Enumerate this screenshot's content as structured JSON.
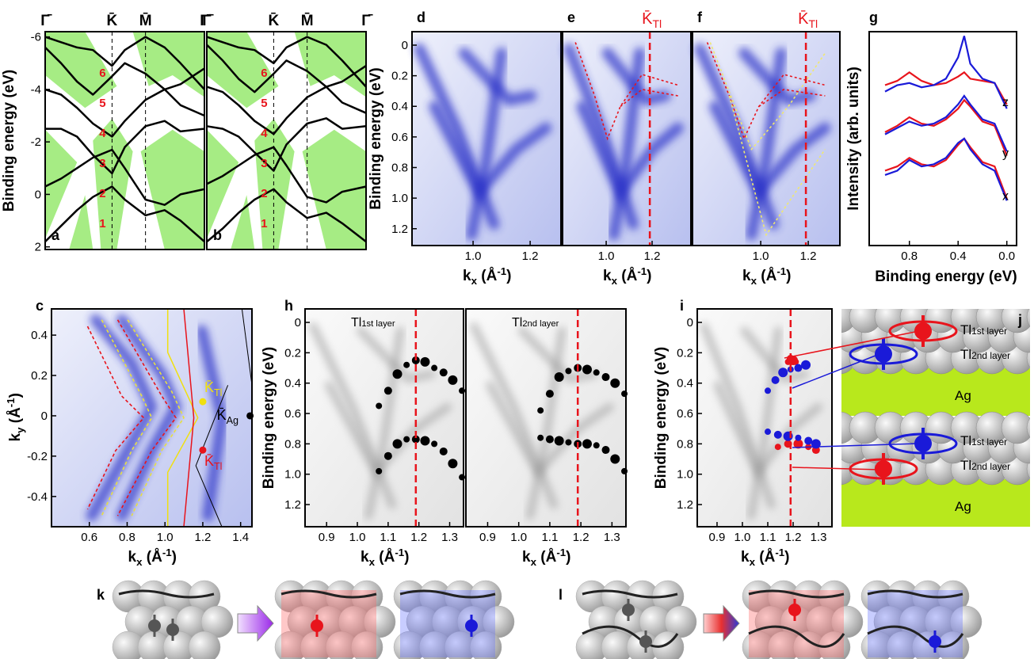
{
  "chart_data": [
    {
      "type": "band",
      "panel": "a",
      "ylabel": "Binding energy (eV)",
      "ylim": [
        -6.2,
        2.1
      ],
      "yticks": [
        -6,
        -4,
        -2,
        0,
        2
      ],
      "xlim": [
        0,
        1
      ],
      "kpoints": [
        "Γ̄",
        "K̄",
        "M̄",
        "Γ̄"
      ],
      "kpos": [
        0,
        0.42,
        0.63,
        1
      ],
      "band_labels": [
        "1",
        "2",
        "3",
        "4",
        "5",
        "6"
      ],
      "k": [
        0,
        0.1,
        0.2,
        0.3,
        0.42,
        0.5,
        0.63,
        0.75,
        0.85,
        1
      ],
      "curves": [
        [
          1.8,
          1.2,
          0.6,
          0.1,
          -0.3,
          0.2,
          0.8,
          0.6,
          1.0,
          1.8
        ],
        [
          -0.3,
          -0.6,
          -1.0,
          -1.4,
          -1.7,
          -1.0,
          0.2,
          0.4,
          0.0,
          -0.2
        ],
        [
          -2.5,
          -2.5,
          -2.2,
          -1.5,
          -0.8,
          -1.8,
          -2.6,
          -2.8,
          -2.4,
          -2.5
        ],
        [
          -4.0,
          -3.8,
          -3.3,
          -2.7,
          -2.2,
          -2.8,
          -3.6,
          -4.0,
          -3.4,
          -3.0
        ],
        [
          -5.6,
          -5.0,
          -4.3,
          -3.8,
          -4.5,
          -5.0,
          -4.6,
          -4.0,
          -4.2,
          -4.8
        ],
        [
          -6.0,
          -5.8,
          -5.6,
          -5.5,
          -4.9,
          -5.5,
          -6.0,
          -5.6,
          -5.0,
          -4.0
        ]
      ]
    },
    {
      "type": "band",
      "panel": "b",
      "ylim": [
        -6.2,
        2.1
      ],
      "xlim": [
        0,
        1
      ],
      "kpoints": [
        "Γ̄",
        "K̄",
        "M̄",
        "Γ̄"
      ],
      "kpos": [
        0,
        0.42,
        0.63,
        1
      ],
      "band_labels": [
        "1",
        "2",
        "3",
        "4",
        "5",
        "6"
      ],
      "k": [
        0,
        0.1,
        0.2,
        0.3,
        0.42,
        0.5,
        0.63,
        0.75,
        0.85,
        1
      ],
      "curves": [
        [
          1.8,
          1.3,
          0.7,
          0.2,
          -0.2,
          0.3,
          0.9,
          0.7,
          1.1,
          1.8
        ],
        [
          -0.4,
          -0.7,
          -1.1,
          -1.5,
          -1.8,
          -1.1,
          0.1,
          0.3,
          -0.1,
          -0.3
        ],
        [
          -2.6,
          -2.5,
          -2.2,
          -1.6,
          -0.9,
          -1.9,
          -2.7,
          -2.9,
          -2.5,
          -2.6
        ],
        [
          -4.1,
          -3.9,
          -3.4,
          -2.8,
          -2.3,
          -2.9,
          -3.7,
          -4.1,
          -3.5,
          -3.1
        ],
        [
          -5.7,
          -5.1,
          -4.4,
          -3.9,
          -4.6,
          -5.1,
          -4.7,
          -4.1,
          -4.3,
          -4.9
        ],
        [
          -6.0,
          -5.8,
          -5.6,
          -5.5,
          -5.0,
          -5.6,
          -6.0,
          -5.7,
          -5.1,
          -4.1
        ]
      ]
    },
    {
      "type": "image",
      "panel": "d",
      "ylabel": "Binding energy (eV)",
      "xlabel": [
        "k",
        "x",
        " (Å",
        "-1",
        ")"
      ],
      "xlim": [
        0.786,
        1.308
      ],
      "ylim": [
        -0.088,
        1.31
      ],
      "xticks": [
        {
          "value": 1,
          "label": "1.0"
        },
        1.2
      ],
      "yticks": [
        0,
        0.2,
        0.4,
        0.6,
        0.8,
        {
          "value": 1,
          "label": "1.0"
        },
        1.2
      ]
    },
    {
      "type": "image",
      "panel": "e",
      "xlabel": [
        "k",
        "x",
        " (Å",
        "-1",
        ")"
      ],
      "xlim": [
        0.81,
        1.369
      ],
      "ylim": [
        -0.088,
        1.31
      ],
      "xticks": [
        {
          "value": 1,
          "label": "1.0"
        },
        1.2
      ],
      "marker_x": 1.19,
      "marker_label": [
        "K̄",
        "Tl"
      ]
    },
    {
      "type": "image",
      "panel": "f",
      "xlabel": [
        "k",
        "x",
        " (Å",
        "-1",
        ")"
      ],
      "xlim": [
        0.713,
        1.333
      ],
      "ylim": [
        -0.088,
        1.31
      ],
      "xticks": [
        {
          "value": 1,
          "label": "1.0"
        },
        1.2
      ],
      "marker_x": 1.19,
      "marker_label": [
        "K̄",
        "Tl"
      ]
    },
    {
      "type": "line",
      "panel": "g",
      "ylabel": "Intensity (arb. units)",
      "xlabel": "Binding energy (eV)",
      "xlim": [
        1.13,
        -0.08
      ],
      "ylim": [
        10,
        0
      ],
      "xticks": [
        0.8,
        0.4,
        {
          "value": 0,
          "label": "0.0"
        }
      ],
      "x": [
        1.0,
        0.9,
        0.8,
        0.7,
        0.6,
        0.5,
        0.4,
        0.35,
        0.3,
        0.2,
        0.1,
        0.0
      ],
      "traces": [
        {
          "label": "z",
          "series": [
            {
              "color": "#e8141c",
              "values": [
                7.5,
                7.7,
                8.1,
                7.7,
                7.5,
                7.6,
                7.9,
                8.1,
                7.8,
                7.7,
                7.6,
                6.6
              ]
            },
            {
              "color": "#1a1ad8",
              "values": [
                7.2,
                7.5,
                7.6,
                7.4,
                7.5,
                7.8,
                8.8,
                9.8,
                8.5,
                7.8,
                7.6,
                6.4
              ]
            }
          ]
        },
        {
          "label": "y",
          "series": [
            {
              "color": "#e8141c",
              "values": [
                5.3,
                5.6,
                6.0,
                5.7,
                5.6,
                5.9,
                6.4,
                6.8,
                6.5,
                5.8,
                5.6,
                4.2
              ]
            },
            {
              "color": "#1a1ad8",
              "values": [
                5.2,
                5.5,
                5.8,
                5.6,
                5.7,
                6.0,
                6.6,
                7.0,
                6.6,
                5.9,
                5.7,
                4.4
              ]
            }
          ]
        },
        {
          "label": "x",
          "series": [
            {
              "color": "#e8141c",
              "values": [
                3.5,
                3.7,
                4.1,
                3.8,
                3.7,
                4.0,
                4.7,
                5.0,
                4.6,
                3.9,
                3.7,
                2.2
              ]
            },
            {
              "color": "#1a1ad8",
              "values": [
                3.3,
                3.5,
                4.0,
                3.7,
                3.8,
                4.1,
                4.8,
                5.0,
                4.5,
                3.8,
                3.5,
                2.1
              ]
            }
          ]
        }
      ]
    },
    {
      "type": "image",
      "panel": "c",
      "xlabel": [
        "k",
        "x",
        " (Å",
        "-1",
        ")"
      ],
      "ylabel": [
        "k",
        "y",
        " (Å",
        "-1",
        ")"
      ],
      "xlim": [
        0.4,
        1.46
      ],
      "ylim": [
        0.53,
        -0.55
      ],
      "xticks": [
        0.6,
        0.8,
        {
          "value": 1,
          "label": "1.0"
        },
        1.2,
        1.4
      ],
      "yticks": [
        0.4,
        0.2,
        0,
        -0.2,
        -0.4
      ],
      "kpoints": [
        {
          "label": [
            "K̄",
            "Tl"
          ],
          "color": "#f0e010",
          "x": 1.2,
          "y": 0.07
        },
        {
          "label": [
            "K̄",
            "Tl"
          ],
          "color": "#e8141c",
          "x": 1.2,
          "y": -0.17
        },
        {
          "label": [
            "K̄",
            "Ag"
          ],
          "color": "#000000",
          "x": 1.45,
          "y": 0
        }
      ]
    },
    {
      "type": "image-gray",
      "panel": "h",
      "ylabel": "Binding energy (eV)",
      "xlabel": [
        "k",
        "x",
        " (Å",
        "-1",
        ")"
      ],
      "xlim": [
        0.83,
        1.345
      ],
      "ylim": [
        -0.089,
        1.346
      ],
      "xticks": [
        0.9,
        {
          "value": 1,
          "label": "1.0"
        },
        1.1,
        1.2,
        1.3
      ],
      "yticks": [
        0,
        0.2,
        0.4,
        0.6,
        0.8,
        {
          "value": 1,
          "label": "1.0"
        },
        1.2
      ],
      "marker_x": 1.19,
      "layer_label": [
        "Tl",
        "1st layer"
      ],
      "points": [
        {
          "color": "#000000",
          "x": [
            1.07,
            1.1,
            1.13,
            1.16,
            1.19,
            1.22,
            1.25,
            1.28,
            1.31,
            1.34
          ],
          "y": [
            0.55,
            0.45,
            0.34,
            0.28,
            0.25,
            0.26,
            0.3,
            0.33,
            0.38,
            0.45
          ]
        },
        {
          "color": "#000000",
          "x": [
            1.07,
            1.1,
            1.13,
            1.16,
            1.19,
            1.22,
            1.25,
            1.28,
            1.31,
            1.34
          ],
          "y": [
            0.98,
            0.88,
            0.8,
            0.77,
            0.77,
            0.78,
            0.8,
            0.85,
            0.93,
            1.02
          ]
        }
      ]
    },
    {
      "type": "image-gray",
      "xlabel": [
        "k",
        "x",
        " (Å",
        "-1",
        ")"
      ],
      "xlim": [
        0.83,
        1.345
      ],
      "ylim": [
        -0.089,
        1.346
      ],
      "xticks": [
        0.9,
        {
          "value": 1,
          "label": "1.0"
        },
        1.1,
        1.2,
        1.3
      ],
      "marker_x": 1.19,
      "layer_label": [
        "Tl",
        "2nd layer"
      ],
      "points": [
        {
          "color": "#000000",
          "x": [
            1.07,
            1.1,
            1.13,
            1.16,
            1.19,
            1.22,
            1.25,
            1.28,
            1.31,
            1.34
          ],
          "y": [
            0.58,
            0.47,
            0.36,
            0.32,
            0.3,
            0.31,
            0.33,
            0.36,
            0.4,
            0.47
          ]
        },
        {
          "color": "#000000",
          "x": [
            1.07,
            1.1,
            1.13,
            1.16,
            1.19,
            1.22,
            1.25,
            1.28,
            1.31,
            1.34
          ],
          "y": [
            0.76,
            0.77,
            0.78,
            0.79,
            0.8,
            0.8,
            0.81,
            0.84,
            0.9,
            0.98
          ]
        }
      ]
    },
    {
      "type": "image-gray",
      "panel": "i",
      "ylabel": "Binding energy (eV)",
      "xlabel": [
        "k",
        "x",
        " (Å",
        "-1",
        ")"
      ],
      "xlim": [
        0.822,
        1.353
      ],
      "ylim": [
        -0.089,
        1.346
      ],
      "xticks": [
        0.9,
        {
          "value": 1,
          "label": "1.0"
        },
        1.1,
        1.2,
        1.3
      ],
      "yticks": [
        0,
        0.2,
        0.4,
        0.6,
        0.8,
        {
          "value": 1,
          "label": "1.0"
        },
        1.2
      ],
      "marker_x": 1.19,
      "points": [
        {
          "color": "#e8141c",
          "x": [
            1.18,
            1.19,
            1.2,
            1.21
          ],
          "y": [
            0.26,
            0.24,
            0.25,
            0.26
          ]
        },
        {
          "color": "#1a1ad8",
          "x": [
            1.1,
            1.13,
            1.16,
            1.19,
            1.22,
            1.25
          ],
          "y": [
            0.45,
            0.38,
            0.33,
            0.31,
            0.3,
            0.28
          ]
        },
        {
          "color": "#e8141c",
          "x": [
            1.14,
            1.18,
            1.22,
            1.26,
            1.29
          ],
          "y": [
            0.82,
            0.8,
            0.8,
            0.82,
            0.84
          ]
        },
        {
          "color": "#1a1ad8",
          "x": [
            1.1,
            1.14,
            1.18,
            1.22,
            1.26,
            1.29
          ],
          "y": [
            0.72,
            0.74,
            0.75,
            0.76,
            0.78,
            0.8
          ]
        }
      ]
    }
  ],
  "diagrams": {
    "j": {
      "panel": "j",
      "top": {
        "layer1": [
          "Tl",
          "1st layer"
        ],
        "layer2": [
          "Tl",
          "2nd layer"
        ],
        "substrate": "Ag"
      },
      "bottom": {
        "layer1": [
          "Tl",
          "1st layer"
        ],
        "layer2": [
          "Tl",
          "2nd layer"
        ],
        "substrate": "Ag"
      }
    },
    "k": {
      "panel": "k"
    },
    "l": {
      "panel": "l"
    }
  }
}
